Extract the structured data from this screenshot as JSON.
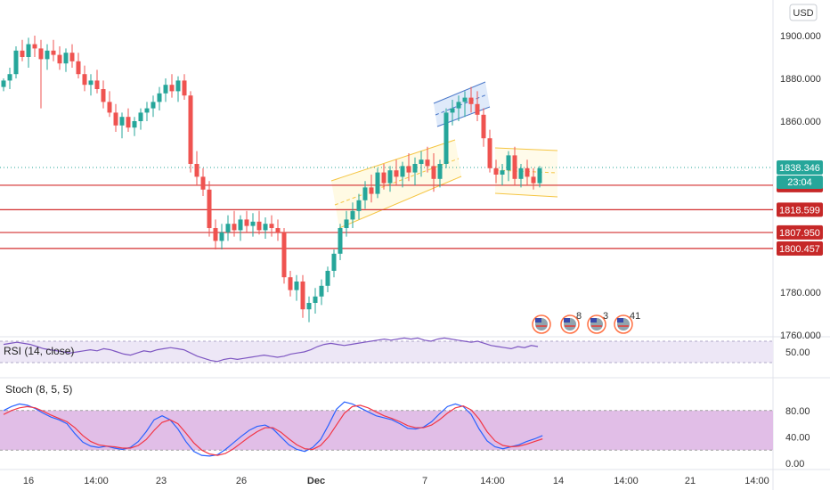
{
  "currency": "USD",
  "colors": {
    "up": "#26a69a",
    "down": "#ef5350",
    "level_line": "#d32f2f",
    "price_tag": "#26a69a",
    "level_tag": "#c62828",
    "rsi_line": "#7e57c2",
    "rsi_band": "#ede7f6",
    "stoch_k": "#2962ff",
    "stoch_d": "#f23645",
    "stoch_band": "#e1bee7",
    "channel_fill": "#fff3c4",
    "channel_line": "#f5c542",
    "flag_fill": "#c5d8f5",
    "flag_line": "#4a78c9"
  },
  "chart_data": [
    {
      "type": "candlestick",
      "title": "",
      "ylim": [
        1760,
        1905
      ],
      "y_ticks": [
        {
          "value": 1900,
          "label": "1900.000"
        },
        {
          "value": 1880,
          "label": "1880.000"
        },
        {
          "value": 1860,
          "label": "1860.000"
        },
        {
          "value": 1780,
          "label": "1780.000"
        },
        {
          "value": 1760,
          "label": "1760.000"
        }
      ],
      "x_ticks": [
        "16",
        "14:00",
        "23",
        "26",
        "Dec",
        "7",
        "14:00",
        "14",
        "14:00",
        "21",
        "14:00"
      ],
      "current_price": {
        "value": 1838.346,
        "label": "1838.346",
        "countdown": "23:04"
      },
      "levels": [
        {
          "value": 1830.036,
          "label": "1830.036"
        },
        {
          "value": 1818.599,
          "label": "1818.599"
        },
        {
          "value": 1807.95,
          "label": "1807.950"
        },
        {
          "value": 1800.457,
          "label": "1800.457"
        }
      ],
      "events": [
        "8",
        "3",
        "41"
      ],
      "candles": [
        [
          1876,
          1880,
          1874,
          1879
        ],
        [
          1879,
          1885,
          1875,
          1882
        ],
        [
          1882,
          1895,
          1880,
          1893
        ],
        [
          1893,
          1898,
          1888,
          1890
        ],
        [
          1890,
          1899,
          1885,
          1896
        ],
        [
          1896,
          1900,
          1890,
          1894
        ],
        [
          1894,
          1898,
          1866,
          1889
        ],
        [
          1889,
          1896,
          1884,
          1893
        ],
        [
          1893,
          1898,
          1888,
          1891
        ],
        [
          1891,
          1895,
          1884,
          1887
        ],
        [
          1887,
          1894,
          1883,
          1892
        ],
        [
          1892,
          1896,
          1885,
          1888
        ],
        [
          1888,
          1892,
          1880,
          1882
        ],
        [
          1882,
          1886,
          1874,
          1877
        ],
        [
          1877,
          1882,
          1872,
          1879
        ],
        [
          1879,
          1884,
          1873,
          1875
        ],
        [
          1875,
          1879,
          1866,
          1869
        ],
        [
          1869,
          1874,
          1862,
          1864
        ],
        [
          1864,
          1868,
          1855,
          1858
        ],
        [
          1858,
          1864,
          1852,
          1862
        ],
        [
          1862,
          1866,
          1855,
          1857
        ],
        [
          1857,
          1862,
          1853,
          1860
        ],
        [
          1860,
          1866,
          1856,
          1864
        ],
        [
          1864,
          1869,
          1860,
          1866
        ],
        [
          1866,
          1872,
          1862,
          1869
        ],
        [
          1869,
          1876,
          1865,
          1873
        ],
        [
          1873,
          1880,
          1869,
          1877
        ],
        [
          1877,
          1882,
          1871,
          1874
        ],
        [
          1874,
          1881,
          1869,
          1879
        ],
        [
          1879,
          1882,
          1870,
          1872
        ],
        [
          1872,
          1874,
          1836,
          1840
        ],
        [
          1840,
          1846,
          1830,
          1834
        ],
        [
          1834,
          1838,
          1825,
          1828
        ],
        [
          1828,
          1832,
          1806,
          1810
        ],
        [
          1810,
          1814,
          1800,
          1804
        ],
        [
          1804,
          1812,
          1800,
          1808
        ],
        [
          1808,
          1816,
          1804,
          1812
        ],
        [
          1812,
          1818,
          1806,
          1809
        ],
        [
          1809,
          1816,
          1804,
          1814
        ],
        [
          1814,
          1818,
          1808,
          1811
        ],
        [
          1811,
          1817,
          1806,
          1813
        ],
        [
          1813,
          1818,
          1807,
          1809
        ],
        [
          1809,
          1815,
          1805,
          1812
        ],
        [
          1812,
          1816,
          1806,
          1810
        ],
        [
          1810,
          1814,
          1804,
          1808
        ],
        [
          1808,
          1810,
          1784,
          1787
        ],
        [
          1787,
          1790,
          1778,
          1781
        ],
        [
          1781,
          1788,
          1776,
          1785
        ],
        [
          1785,
          1788,
          1768,
          1772
        ],
        [
          1772,
          1778,
          1766,
          1775
        ],
        [
          1775,
          1782,
          1770,
          1778
        ],
        [
          1778,
          1786,
          1774,
          1783
        ],
        [
          1783,
          1792,
          1780,
          1790
        ],
        [
          1790,
          1800,
          1787,
          1798
        ],
        [
          1798,
          1812,
          1795,
          1810
        ],
        [
          1810,
          1818,
          1806,
          1814
        ],
        [
          1814,
          1822,
          1810,
          1818
        ],
        [
          1818,
          1826,
          1814,
          1823
        ],
        [
          1823,
          1832,
          1819,
          1829
        ],
        [
          1829,
          1835,
          1822,
          1826
        ],
        [
          1826,
          1838,
          1824,
          1836
        ],
        [
          1836,
          1840,
          1828,
          1831
        ],
        [
          1831,
          1839,
          1827,
          1837
        ],
        [
          1837,
          1842,
          1830,
          1834
        ],
        [
          1834,
          1841,
          1829,
          1839
        ],
        [
          1839,
          1845,
          1832,
          1836
        ],
        [
          1836,
          1843,
          1830,
          1840
        ],
        [
          1840,
          1846,
          1834,
          1842
        ],
        [
          1842,
          1848,
          1836,
          1839
        ],
        [
          1839,
          1845,
          1827,
          1833
        ],
        [
          1833,
          1842,
          1829,
          1840
        ],
        [
          1840,
          1866,
          1838,
          1864
        ],
        [
          1864,
          1870,
          1858,
          1866
        ],
        [
          1866,
          1872,
          1860,
          1869
        ],
        [
          1869,
          1874,
          1862,
          1871
        ],
        [
          1871,
          1876,
          1864,
          1868
        ],
        [
          1868,
          1874,
          1860,
          1863
        ],
        [
          1863,
          1866,
          1848,
          1852
        ],
        [
          1852,
          1856,
          1836,
          1838
        ],
        [
          1838,
          1842,
          1831,
          1835
        ],
        [
          1835,
          1840,
          1830,
          1837
        ],
        [
          1837,
          1846,
          1832,
          1844
        ],
        [
          1844,
          1848,
          1830,
          1833
        ],
        [
          1833,
          1840,
          1829,
          1838
        ],
        [
          1838,
          1842,
          1830,
          1834
        ],
        [
          1834,
          1838,
          1828,
          1831
        ],
        [
          1831,
          1839,
          1829,
          1838
        ]
      ]
    },
    {
      "type": "line",
      "title": "RSI (14, close)",
      "ylim": [
        30,
        70
      ],
      "y_ticks": [
        {
          "value": 50,
          "label": "50.00"
        }
      ],
      "band": [
        40,
        60
      ],
      "values": [
        57,
        58,
        59,
        58,
        57,
        55,
        53,
        52,
        51,
        50,
        49,
        50,
        51,
        52,
        51,
        53,
        52,
        50,
        48,
        47,
        49,
        51,
        50,
        52,
        53,
        54,
        53,
        52,
        49,
        46,
        44,
        42,
        41,
        43,
        44,
        43,
        44,
        45,
        46,
        47,
        46,
        45,
        46,
        48,
        49,
        50,
        52,
        55,
        57,
        58,
        57,
        56,
        57,
        58,
        59,
        60,
        61,
        62,
        61,
        62,
        63,
        62,
        63,
        61,
        60,
        62,
        63,
        62,
        61,
        60,
        59,
        60,
        58,
        56,
        55,
        54,
        53,
        55,
        54,
        56,
        55
      ]
    },
    {
      "type": "line",
      "title": "Stoch (8, 5, 5)",
      "ylim": [
        0,
        100
      ],
      "y_ticks": [
        {
          "value": 80,
          "label": "80.00"
        },
        {
          "value": 40,
          "label": "40.00"
        },
        {
          "value": 0,
          "label": "0.00"
        }
      ],
      "band": [
        20,
        80
      ],
      "series": [
        {
          "key": "k",
          "values": [
            80,
            86,
            90,
            88,
            83,
            76,
            70,
            66,
            60,
            45,
            32,
            26,
            24,
            26,
            23,
            21,
            24,
            33,
            48,
            66,
            72,
            66,
            52,
            33,
            18,
            12,
            11,
            13,
            21,
            31,
            41,
            50,
            56,
            58,
            52,
            40,
            28,
            21,
            18,
            24,
            36,
            58,
            82,
            93,
            90,
            84,
            78,
            72,
            69,
            66,
            60,
            53,
            52,
            55,
            63,
            75,
            86,
            90,
            86,
            74,
            52,
            34,
            25,
            22,
            25,
            28,
            33,
            37,
            42
          ]
        },
        {
          "key": "d",
          "values": [
            74,
            80,
            84,
            86,
            84,
            79,
            73,
            68,
            63,
            54,
            42,
            33,
            28,
            26,
            25,
            23,
            23,
            27,
            36,
            50,
            62,
            66,
            60,
            46,
            31,
            20,
            14,
            12,
            15,
            22,
            31,
            40,
            48,
            54,
            54,
            47,
            37,
            28,
            22,
            21,
            27,
            40,
            58,
            76,
            86,
            88,
            84,
            78,
            72,
            68,
            63,
            57,
            54,
            54,
            58,
            66,
            76,
            84,
            87,
            81,
            67,
            48,
            34,
            27,
            25,
            26,
            29,
            33,
            37
          ]
        }
      ]
    }
  ]
}
